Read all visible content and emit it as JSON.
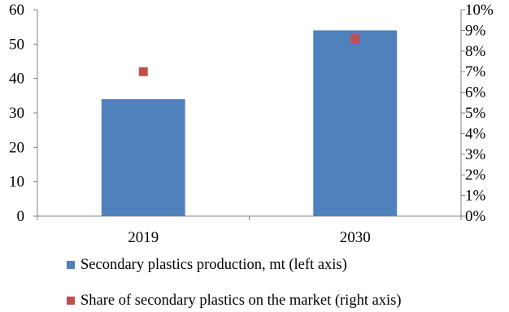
{
  "chart_data": {
    "type": "bar",
    "categories": [
      "2019",
      "2030"
    ],
    "series": [
      {
        "name": "Secondary plastics production, mt (left axis)",
        "type": "bar",
        "axis": "left",
        "color": "#4F81BD",
        "values": [
          34,
          54
        ]
      },
      {
        "name": "Share of secondary plastics on the market (right axis)",
        "type": "marker",
        "axis": "right",
        "color": "#C0504D",
        "values": [
          7.0,
          8.6
        ]
      }
    ],
    "ylim": [
      0,
      60
    ],
    "y_ticks": [
      "0",
      "10",
      "20",
      "30",
      "40",
      "50",
      "60"
    ],
    "y2lim": [
      0,
      10
    ],
    "y2_ticks": [
      "0%",
      "1%",
      "2%",
      "3%",
      "4%",
      "5%",
      "6%",
      "7%",
      "8%",
      "9%",
      "10%"
    ],
    "grid": false,
    "legend_position": "bottom"
  }
}
